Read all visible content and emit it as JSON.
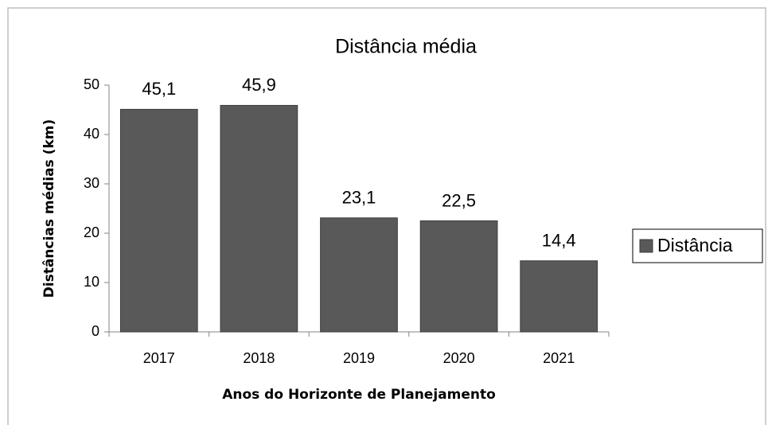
{
  "chart_data": {
    "type": "bar",
    "title": "Distância média",
    "x_label": "Anos do Horizonte de Planejamento",
    "y_label": "Distâncias médias (km)",
    "categories": [
      "2017",
      "2018",
      "2019",
      "2020",
      "2021"
    ],
    "series": [
      {
        "name": "Distância",
        "color": "#595959",
        "values": [
          45.1,
          45.9,
          23.1,
          22.5,
          14.4
        ],
        "value_labels": [
          "45,1",
          "45,9",
          "23,1",
          "22,5",
          "14,4"
        ]
      }
    ],
    "ylim": [
      0,
      50
    ],
    "yticks": [
      0,
      10,
      20,
      30,
      40,
      50
    ],
    "grid": false,
    "legend": "right"
  }
}
